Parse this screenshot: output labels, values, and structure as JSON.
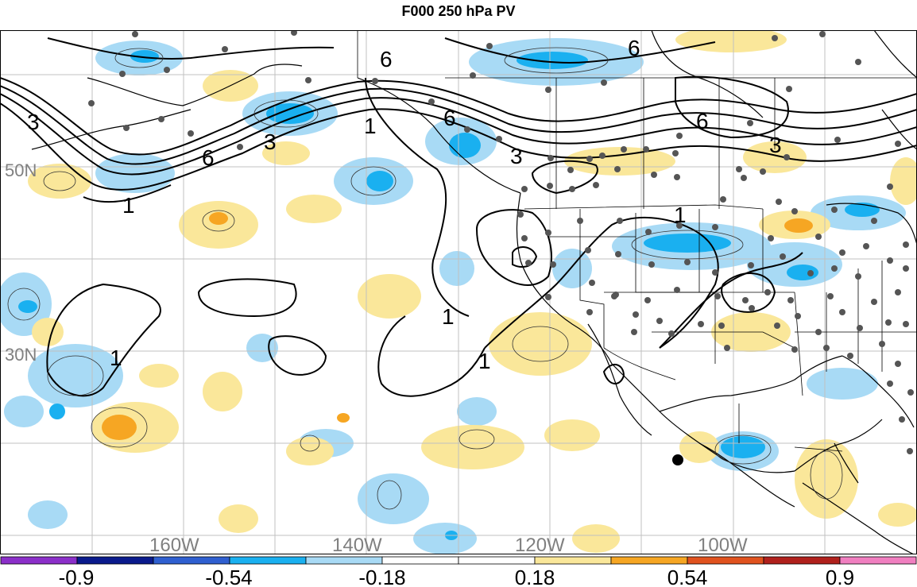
{
  "title": "F000 250 hPa PV",
  "map": {
    "lat_labels": [
      "50N",
      "30N"
    ],
    "lon_labels": [
      "160W",
      "140W",
      "120W",
      "100W"
    ],
    "contour_labels": [
      "3",
      "6",
      "1",
      "3",
      "6",
      "6",
      "1",
      "3",
      "6",
      "6",
      "3",
      "1",
      "1",
      "1",
      "1"
    ]
  },
  "colorbar": {
    "tick_labels": [
      "-0.9",
      "-0.54",
      "-0.18",
      "0.18",
      "0.54",
      "0.9"
    ],
    "colors": [
      "#8b2fc9",
      "#0a1a8c",
      "#2f5fd0",
      "#1ab0f0",
      "#a8daf5",
      "#ffffff",
      "#ffffff",
      "#fae79a",
      "#f6a623",
      "#e0521e",
      "#b0201c",
      "#f07fc0"
    ]
  },
  "colors": {
    "light_blue": "#a8daf5",
    "mid_blue": "#1ab0f0",
    "light_yellow": "#fae79a",
    "orange": "#f6a623",
    "station_dot": "#555555"
  }
}
